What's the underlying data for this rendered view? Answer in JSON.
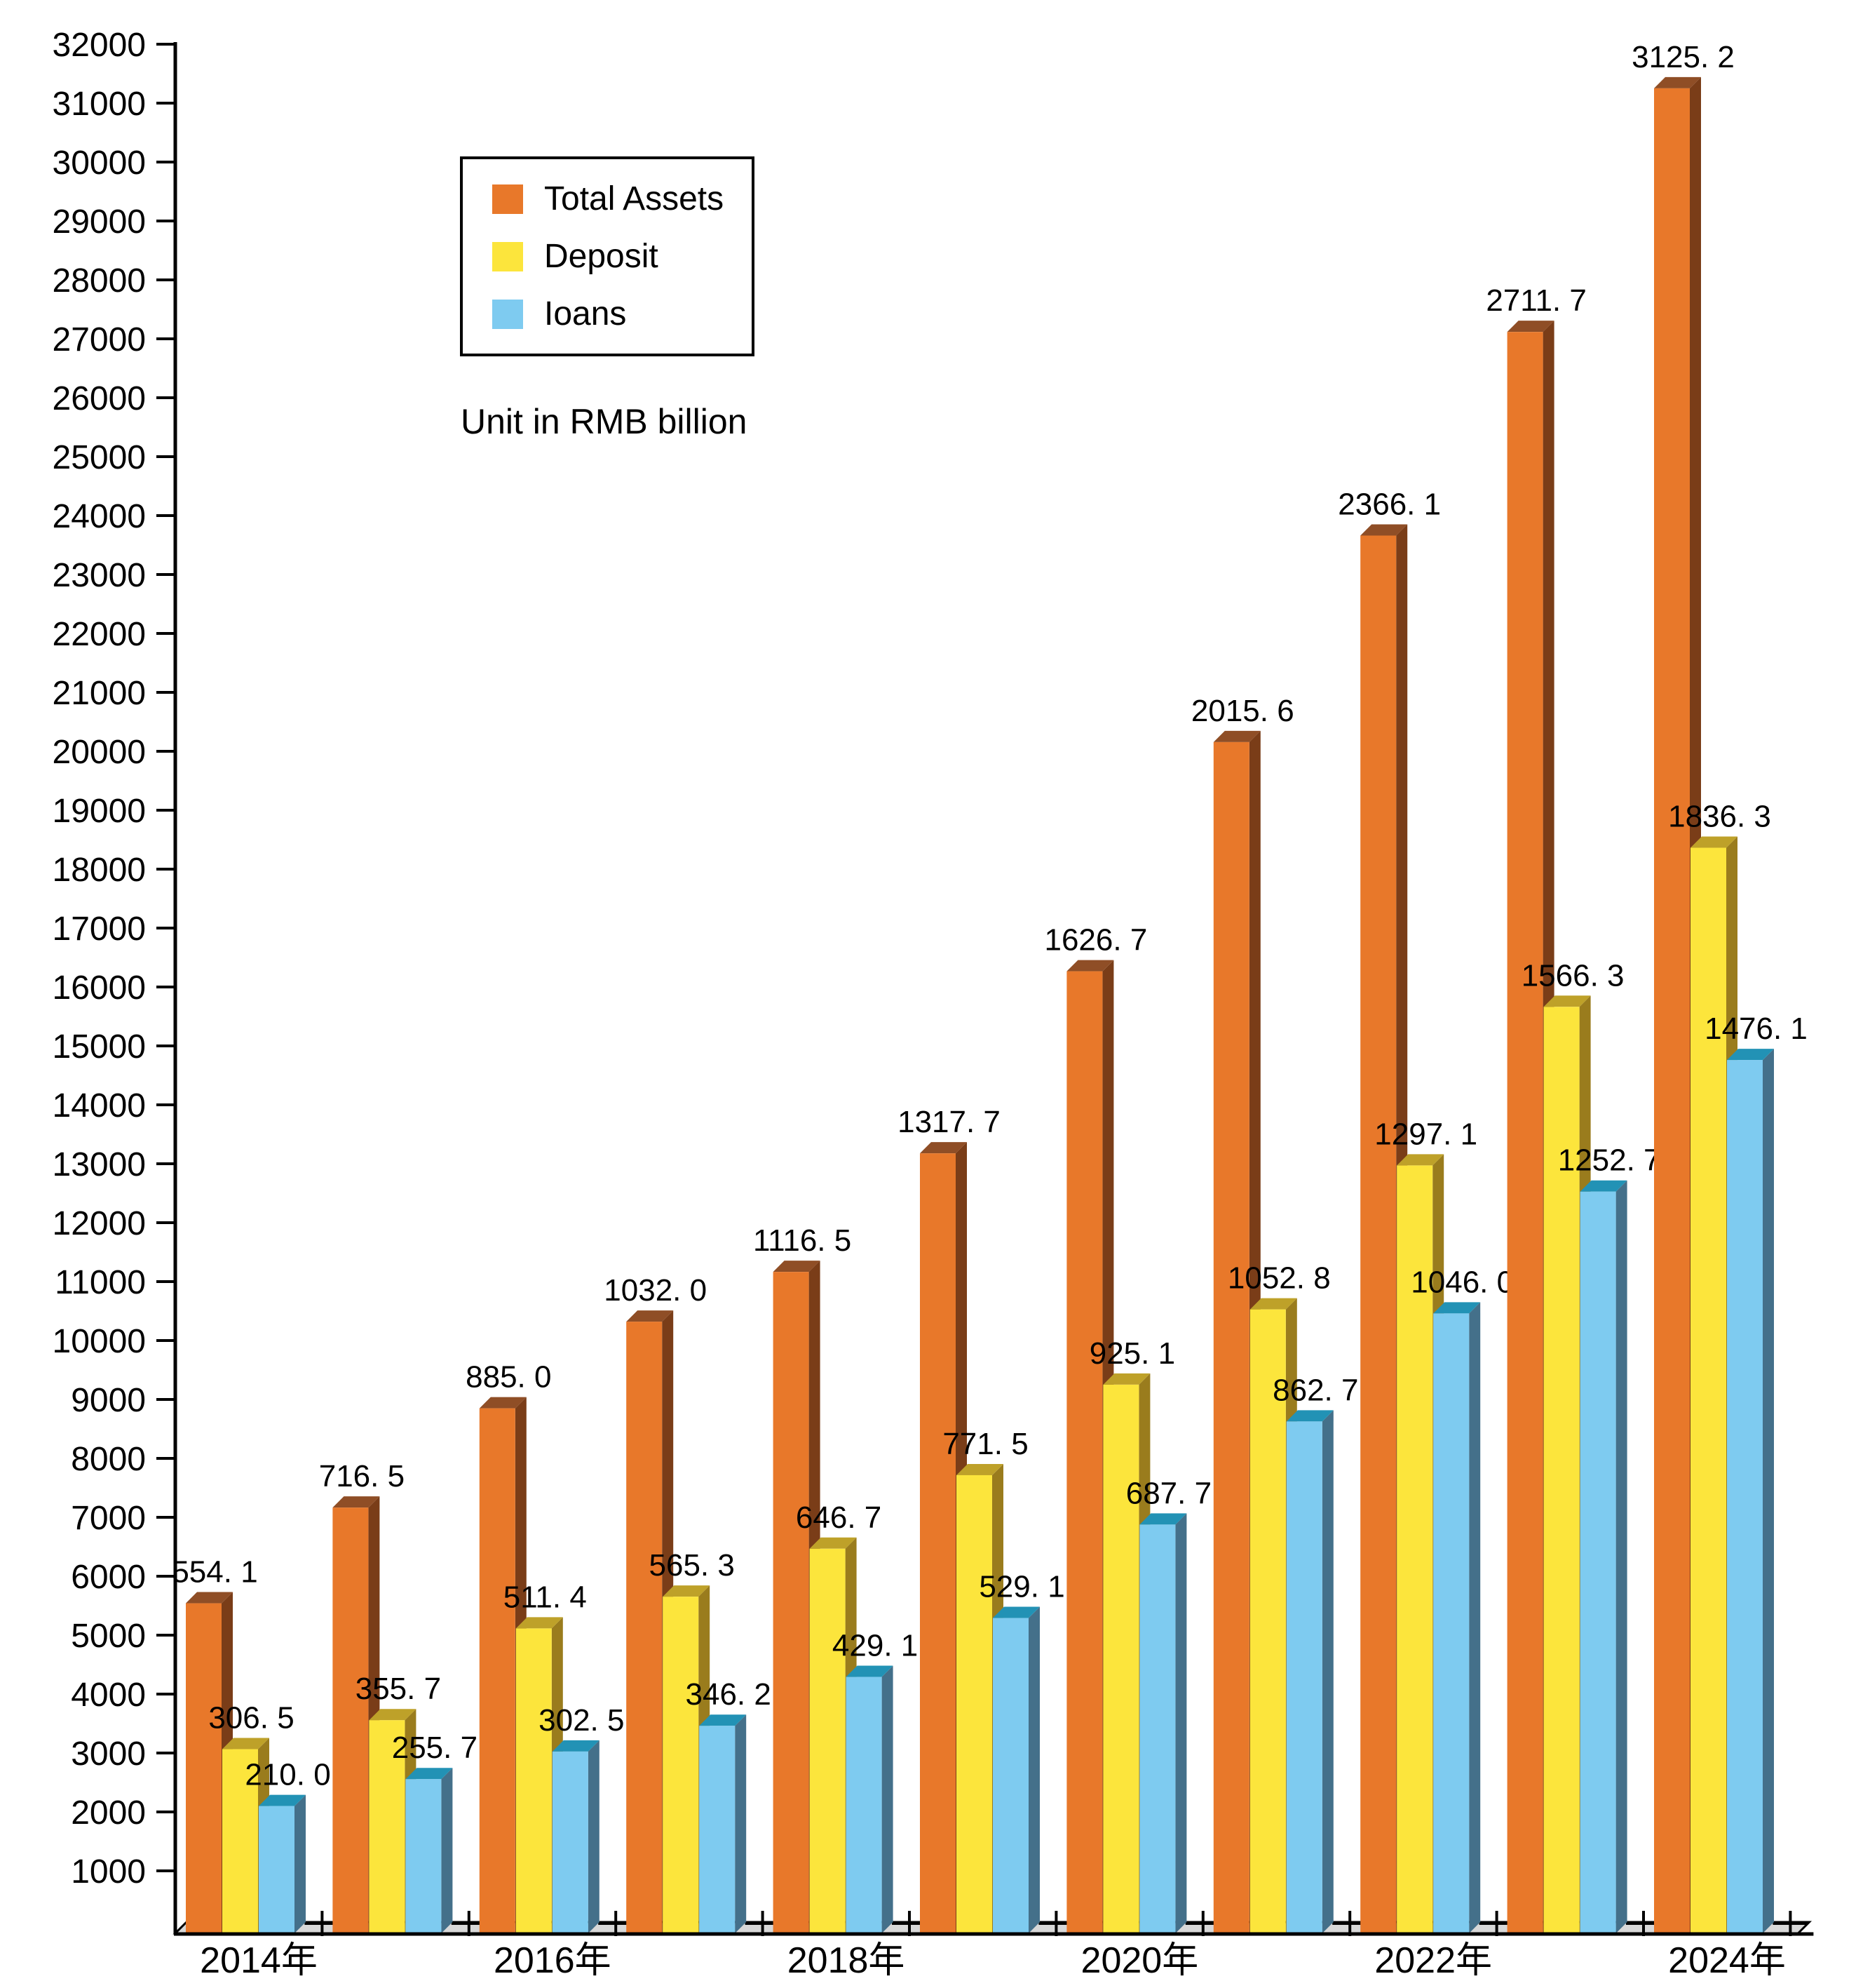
{
  "subtitle": "Unit in RMB billion",
  "legend": {
    "items": [
      {
        "label": "Total Assets",
        "color": "#E8782A"
      },
      {
        "label": "Deposit",
        "color": "#FCE53C"
      },
      {
        "label": "Ioans",
        "color": "#7ECBF0"
      }
    ]
  },
  "chart_data": {
    "type": "bar",
    "style": "3d-extruded-column",
    "title": "",
    "subtitle": "Unit in RMB billion",
    "categories": [
      "2014",
      "2015",
      "2016",
      "2017",
      "2018",
      "2019",
      "2020",
      "2021",
      "2022",
      "2023",
      "2024"
    ],
    "x_axis_labels_visible": [
      "2014年",
      "2016年",
      "2018年",
      "2020年",
      "2022年",
      "2024年"
    ],
    "x_axis_labeled_every_n_groups": 2,
    "series": [
      {
        "name": "Total Assets",
        "front_color": "#E8782A",
        "side_color": "#7A3D18",
        "top_color": "#8F4E26",
        "values": [
          554.1,
          716.5,
          885.0,
          1032.0,
          1116.5,
          1317.7,
          1626.7,
          2015.6,
          2366.1,
          2711.7,
          3125.2
        ]
      },
      {
        "name": "Deposit",
        "front_color": "#FCE53C",
        "side_color": "#9A7C1D",
        "top_color": "#BEA129",
        "values": [
          306.5,
          355.7,
          511.4,
          565.3,
          646.7,
          771.5,
          925.1,
          1052.8,
          1297.1,
          1566.3,
          1836.3
        ]
      },
      {
        "name": "Ioans",
        "front_color": "#7ECBF0",
        "side_color": "#44708A",
        "top_color": "#2292B5",
        "values": [
          210.0,
          255.7,
          302.5,
          346.2,
          429.1,
          529.1,
          687.7,
          862.7,
          1046.0,
          1252.7,
          1476.1
        ]
      }
    ],
    "value_label_decimal_style": "period followed by space, e.g. 554. 1",
    "y_axis": {
      "min": 0,
      "max": 32000,
      "tick_step": 1000,
      "first_labeled_tick": 1000,
      "value_axis_multiplier": 10
    },
    "legend_position": "upper-left-inside",
    "grid": false,
    "floor_color": "#D8D8D8"
  }
}
